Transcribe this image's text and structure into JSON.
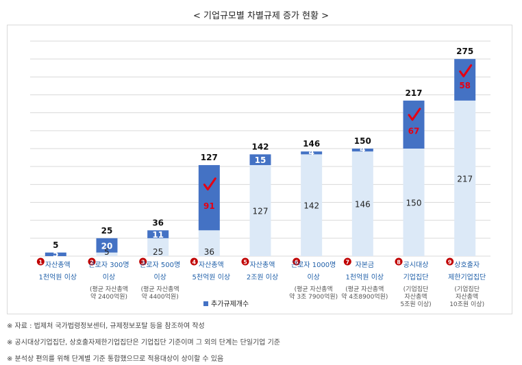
{
  "title": "< 기업규모별 차별규제 증가 현황 >",
  "chart_data": {
    "type": "bar",
    "stacked": true,
    "ylim": [
      0,
      300
    ],
    "grid": true,
    "legend": "bottom",
    "categories": [
      {
        "num": "1",
        "lines": [
          "자산총액",
          "1천억원 이상"
        ],
        "sub": []
      },
      {
        "num": "2",
        "lines": [
          "근로자 300명",
          "이상"
        ],
        "sub": [
          "(평균 자산총액",
          "약 2400억원)"
        ]
      },
      {
        "num": "3",
        "lines": [
          "근로자 500명",
          "이상"
        ],
        "sub": [
          "(평균 자산총액",
          "약 4400억원)"
        ]
      },
      {
        "num": "4",
        "lines": [
          "자산총액",
          "5천억원 이상"
        ],
        "sub": []
      },
      {
        "num": "5",
        "lines": [
          "자산총액",
          "2조원 이상"
        ],
        "sub": []
      },
      {
        "num": "6",
        "lines": [
          "근로자 1000명",
          "이상"
        ],
        "sub": [
          "(평균 자산총액",
          "약 3조 7900억원)"
        ]
      },
      {
        "num": "7",
        "lines": [
          "자본금",
          "1천억원 이상"
        ],
        "sub": [
          "(평균 자산총액",
          "약 4조8900억원)"
        ]
      },
      {
        "num": "8",
        "lines": [
          "공시대상",
          "기업집단"
        ],
        "sub": [
          "(기업집단",
          "자산총액",
          "5조원 이상)"
        ]
      },
      {
        "num": "9",
        "lines": [
          "상호출자",
          "제한기업집단"
        ],
        "sub": [
          "(기업집단",
          "자산총액",
          "10조원 이상)"
        ]
      }
    ],
    "series": [
      {
        "values": [
          0,
          5,
          25,
          36,
          127,
          142,
          146,
          150,
          217
        ],
        "labels": [
          "",
          "5",
          "25",
          "36",
          "127",
          "142",
          "146",
          "150",
          "217"
        ]
      },
      {
        "name": "추가규제개수",
        "values": [
          5,
          20,
          11,
          91,
          15,
          4,
          4,
          67,
          58
        ],
        "labels": [
          "5",
          "20",
          "11",
          "91",
          "15",
          "4",
          "4",
          "67",
          "58"
        ]
      }
    ],
    "totals": [
      "5",
      "25",
      "36",
      "127",
      "142",
      "146",
      "150",
      "217",
      "275"
    ],
    "checkmarks": [
      3,
      7,
      8
    ],
    "colors": {
      "base": "#dce9f7",
      "added": "#4472c4",
      "added_text": "#e60012",
      "category_text": "#1f5fa8",
      "badge": "#c00000",
      "grid": "#d9d9d9"
    }
  },
  "notes": [
    "※ 자료 : 법제처 국가법령정보센터, 규제정보포탈 등을 참조하여 작성",
    "※ 공시대상기업집단, 상호출자제한기업집단은 기업집단 기준이며 그 외의 단계는 단일기업 기준",
    "※ 분석상 편의를 위해 단계별 기준 통합했으므로 적용대상이 상이할 수 있음"
  ]
}
